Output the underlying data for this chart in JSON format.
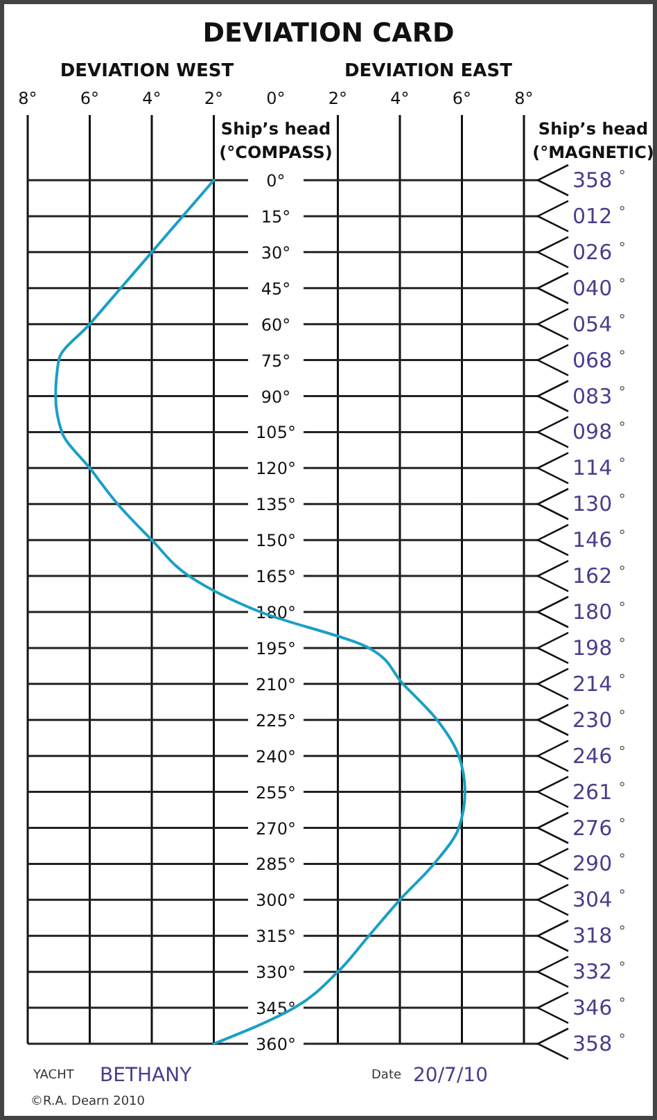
{
  "chart_data": {
    "type": "line",
    "title": "DEVIATION CARD",
    "ylabel": "Ship’s head (°COMPASS)",
    "y2label": "Ship’s head (°MAGNETIC)",
    "annotations": [
      "DEVIATION WEST",
      "DEVIATION EAST",
      "YACHT",
      "BETHANY",
      "Date",
      "20/7/10",
      "©R.A. Dearn 2010",
      "358 $^{°}$",
      "012 $^{°}$",
      "026 $^{°}$",
      "040 $^{°}$",
      "054 $^{°}$",
      "068 $^{°}$",
      "083 $^{°}$",
      "098 $^{°}$",
      "114 $^{°}$",
      "130 $^{°}$",
      "146 $^{°}$",
      "162 $^{°}$",
      "180 $^{°}$",
      "198 $^{°}$",
      "214 $^{°}$",
      "230 $^{°}$",
      "246 $^{°}$",
      "261 $^{°}$",
      "276 $^{°}$",
      "290 $^{°}$",
      "304 $^{°}$",
      "318 $^{°}$",
      "332 $^{°}$",
      "346 $^{°}$",
      "358 $^{°}$"
    ],
    "series": [
      {
        "color": "#1a9fc6",
        "x": [
          -2,
          -3,
          -4,
          -5,
          -6,
          -7,
          -7.1,
          -6.9,
          -6,
          -5.1,
          -4,
          -2.8,
          -0.5,
          3,
          4.1,
          5.2,
          5.9,
          6.1,
          5.9,
          5.1,
          4,
          3,
          2,
          0.6,
          -2
        ],
        "values": [
          0,
          15,
          30,
          45,
          60,
          75,
          90,
          105,
          120,
          135,
          150,
          165,
          180,
          195,
          210,
          225,
          240,
          255,
          270,
          285,
          300,
          315,
          330,
          345,
          360
        ]
      }
    ],
    "xlim": [
      -8,
      8
    ],
    "xticks": [
      {
        "value": -8,
        "label": "8°"
      },
      {
        "value": -6,
        "label": "6°"
      },
      {
        "value": -4,
        "label": "4°"
      },
      {
        "value": -2,
        "label": "2°"
      },
      {
        "value": 0,
        "label": "0°"
      },
      {
        "value": 2,
        "label": "2°"
      },
      {
        "value": 4,
        "label": "4°"
      },
      {
        "value": 6,
        "label": "6°"
      },
      {
        "value": 8,
        "label": "8°"
      }
    ],
    "ylim": [
      360,
      0
    ],
    "yticks": [
      {
        "value": 0,
        "label": "0°"
      },
      {
        "value": 15,
        "label": "15°"
      },
      {
        "value": 30,
        "label": "30°"
      },
      {
        "value": 45,
        "label": "45°"
      },
      {
        "value": 60,
        "label": "60°"
      },
      {
        "value": 75,
        "label": "75°"
      },
      {
        "value": 90,
        "label": "90°"
      },
      {
        "value": 105,
        "label": "105°"
      },
      {
        "value": 120,
        "label": "120°"
      },
      {
        "value": 135,
        "label": "135°"
      },
      {
        "value": 150,
        "label": "150°"
      },
      {
        "value": 165,
        "label": "165°"
      },
      {
        "value": 180,
        "label": "180°"
      },
      {
        "value": 195,
        "label": "195°"
      },
      {
        "value": 210,
        "label": "210°"
      },
      {
        "value": 225,
        "label": "225°"
      },
      {
        "value": 240,
        "label": "240°"
      },
      {
        "value": 255,
        "label": "255°"
      },
      {
        "value": 270,
        "label": "270°"
      },
      {
        "value": 285,
        "label": "285°"
      },
      {
        "value": 300,
        "label": "300°"
      },
      {
        "value": 315,
        "label": "315°"
      },
      {
        "value": 330,
        "label": "330°"
      },
      {
        "value": 345,
        "label": "345°"
      },
      {
        "value": 360,
        "label": "360°"
      }
    ],
    "grid": true
  }
}
